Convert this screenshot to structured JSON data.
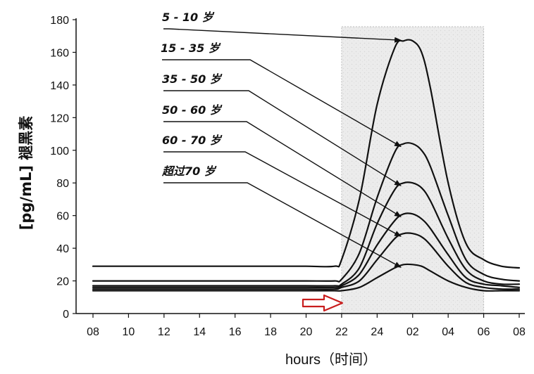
{
  "chart_data": {
    "type": "line",
    "xlabel": "hours（时间）",
    "ylabel": "[pg/mL] 褪黑素",
    "ylim": [
      0,
      180
    ],
    "y_ticks": [
      "0",
      "20",
      "40",
      "60",
      "80",
      "100",
      "120",
      "140",
      "160",
      "180"
    ],
    "x_tick_labels": [
      "08",
      "10",
      "12",
      "14",
      "16",
      "18",
      "20",
      "22",
      "24",
      "02",
      "04",
      "06",
      "08"
    ],
    "x": [
      8,
      10,
      12,
      14,
      16,
      18,
      20,
      21.6,
      22,
      23,
      24,
      25,
      25.5,
      26,
      26.5,
      27,
      28,
      29,
      30,
      31,
      32
    ],
    "series": [
      {
        "name": "5 - 10 岁",
        "values": [
          29,
          29,
          29,
          29,
          29,
          29,
          29,
          29,
          33,
          70,
          128,
          163,
          167,
          167,
          160,
          138,
          80,
          43,
          33,
          29,
          28
        ]
      },
      {
        "name": "15 - 35 岁",
        "values": [
          20,
          20,
          20,
          20,
          20,
          20,
          20,
          20,
          21,
          37,
          71,
          99,
          104,
          104,
          100,
          90,
          60,
          33,
          24,
          21,
          20
        ]
      },
      {
        "name": "35 - 50 岁",
        "values": [
          17,
          17,
          17,
          17,
          17,
          17,
          17,
          17,
          18,
          28,
          55,
          76,
          80,
          80,
          77,
          69,
          46,
          27,
          20,
          18,
          18
        ]
      },
      {
        "name": "50 - 60 岁",
        "values": [
          16,
          16,
          16,
          16,
          16,
          16,
          16,
          16,
          17,
          24,
          42,
          57,
          61,
          61,
          58,
          52,
          36,
          22,
          18,
          17,
          16
        ]
      },
      {
        "name": "60 - 70 岁",
        "values": [
          15,
          15,
          15,
          15,
          15,
          15,
          15,
          15,
          16,
          20,
          33,
          46,
          49,
          49,
          47,
          42,
          29,
          19,
          16,
          15,
          15
        ]
      },
      {
        "name": "超过70 岁",
        "values": [
          14,
          14,
          14,
          14,
          14,
          14,
          14,
          14,
          14,
          16,
          22,
          28,
          30,
          30,
          29,
          26,
          20,
          16,
          14,
          14,
          14
        ]
      }
    ],
    "shaded_region_x": [
      22,
      30
    ],
    "grid": false,
    "legend": "annotated labels with leader arrows"
  },
  "colors": {
    "line": "#111111",
    "shade": "#e9e9e9",
    "marker_arrow": "#c81d1d"
  }
}
